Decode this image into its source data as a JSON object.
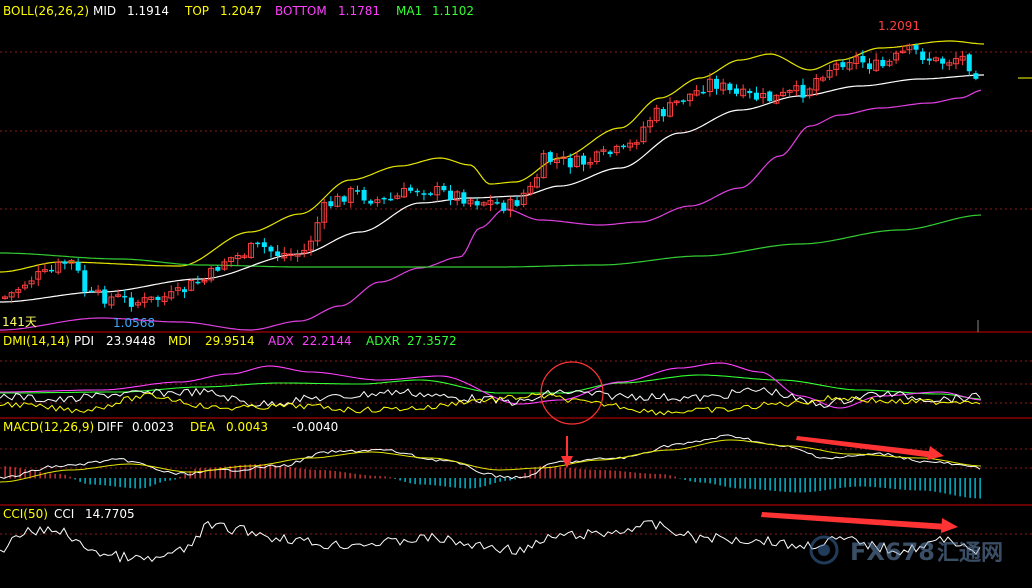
{
  "colors": {
    "background": "#000000",
    "separator": "#8b0000",
    "grid": "#8b1a1a",
    "candle_up": "#ff4040",
    "candle_down": "#00e5ff",
    "mid": "#ffffff",
    "top": "#e6e600",
    "bottom": "#e040e0",
    "ma": "#33cc33",
    "label_gray": "#c8c8c8",
    "pdi": "#ffffff",
    "mdi": "#ffff00",
    "adx": "#ff40ff",
    "adxr": "#33ff33",
    "diff": "#ffffff",
    "dea": "#e6e600",
    "annot": "#ff3333"
  },
  "panels": {
    "boll": {
      "items": [
        {
          "label": "BOLL(26,26,2)",
          "color": "#ffff00"
        },
        {
          "label": "MID",
          "color": "#ffffff"
        },
        {
          "label": "1.1914",
          "color": "#ffffff"
        },
        {
          "label": "TOP",
          "color": "#ffff00"
        },
        {
          "label": "1.2047",
          "color": "#ffff00"
        },
        {
          "label": "BOTTOM",
          "color": "#ff40ff"
        },
        {
          "label": "1.1781",
          "color": "#ff40ff"
        },
        {
          "label": "MA1",
          "color": "#33ff33"
        },
        {
          "label": "1.1102",
          "color": "#33ff33"
        }
      ],
      "high_label": "1.2091",
      "low_label": "1.0568",
      "days_label": "141天"
    },
    "dmi": {
      "items": [
        {
          "label": "DMI(14,14)",
          "color": "#ffff00"
        },
        {
          "label": "PDI",
          "color": "#ffffff"
        },
        {
          "label": "23.9448",
          "color": "#ffffff"
        },
        {
          "label": "MDI",
          "color": "#ffff00"
        },
        {
          "label": "29.9514",
          "color": "#ffff00"
        },
        {
          "label": "ADX",
          "color": "#ff40ff"
        },
        {
          "label": "22.2144",
          "color": "#ff40ff"
        },
        {
          "label": "ADXR",
          "color": "#33ff33"
        },
        {
          "label": "27.3572",
          "color": "#33ff33"
        }
      ]
    },
    "macd": {
      "items": [
        {
          "label": "MACD(12,26,9)",
          "color": "#ffff00"
        },
        {
          "label": "DIFF",
          "color": "#ffffff"
        },
        {
          "label": "0.0023",
          "color": "#ffffff"
        },
        {
          "label": "DEA",
          "color": "#ffff00"
        },
        {
          "label": "0.0043",
          "color": "#ffff00"
        },
        {
          "label": "-0.0040",
          "color": "#ffffff"
        }
      ]
    },
    "cci": {
      "items": [
        {
          "label": "CCI(50)",
          "color": "#ffff00"
        },
        {
          "label": "CCI",
          "color": "#ffffff"
        },
        {
          "label": "14.7705",
          "color": "#ffffff"
        }
      ]
    }
  },
  "watermark": {
    "text": "FX678",
    "sub": "汇通网"
  },
  "chart_data": [
    {
      "type": "candlestick",
      "title": "BOLL(26,26,2)",
      "annotations": [
        "1.2091",
        "1.0568",
        "141天"
      ],
      "series": [
        {
          "name": "MID",
          "current": 1.1914
        },
        {
          "name": "TOP",
          "current": 1.2047
        },
        {
          "name": "BOTTOM",
          "current": 1.1781
        },
        {
          "name": "MA1",
          "current": 1.1102
        }
      ],
      "high": 1.2091,
      "low": 1.0568
    },
    {
      "type": "line",
      "title": "DMI(14,14)",
      "series": [
        {
          "name": "PDI",
          "current": 23.9448
        },
        {
          "name": "MDI",
          "current": 29.9514
        },
        {
          "name": "ADX",
          "current": 22.2144
        },
        {
          "name": "ADXR",
          "current": 27.3572
        }
      ]
    },
    {
      "type": "line",
      "title": "MACD(12,26,9)",
      "series": [
        {
          "name": "DIFF",
          "current": 0.0023
        },
        {
          "name": "DEA",
          "current": 0.0043
        }
      ],
      "histogram_current": -0.004
    },
    {
      "type": "line",
      "title": "CCI(50)",
      "series": [
        {
          "name": "CCI",
          "current": 14.7705
        }
      ]
    }
  ]
}
